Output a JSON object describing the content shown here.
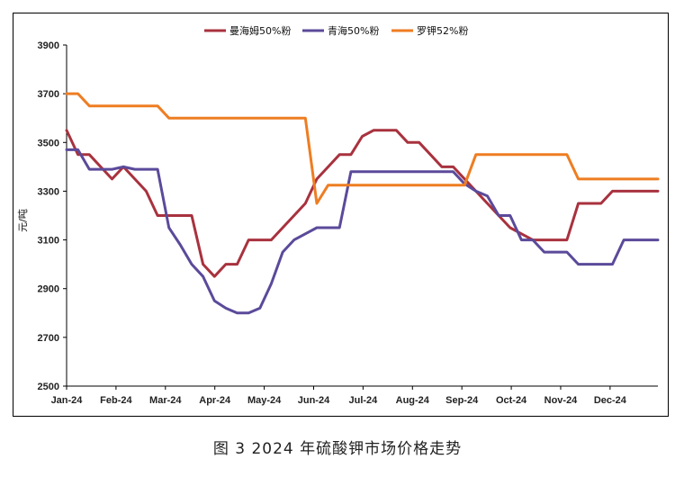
{
  "caption": "图 3  2024 年硫酸钾市场价格走势",
  "chart_data": {
    "type": "line",
    "title": "",
    "xlabel": "",
    "ylabel": "元/吨",
    "ylim": [
      2500,
      3900
    ],
    "yticks": [
      2500,
      2700,
      2900,
      3100,
      3300,
      3500,
      3700,
      3900
    ],
    "x_tick_labels": [
      "Jan-24",
      "Feb-24",
      "Mar-24",
      "Apr-24",
      "May-24",
      "Jun-24",
      "Jul-24",
      "Aug-24",
      "Sep-24",
      "Oct-24",
      "Nov-24",
      "Dec-24"
    ],
    "grid": false,
    "legend_position": "top",
    "x_unit": "week",
    "series": [
      {
        "name": "曼海姆50%粉",
        "color": "#A8323E",
        "values": [
          3550,
          3450,
          3450,
          3400,
          3350,
          3400,
          3350,
          3300,
          3200,
          3200,
          3200,
          3200,
          3000,
          2950,
          3000,
          3000,
          3100,
          3100,
          3100,
          3150,
          3200,
          3250,
          3350,
          3400,
          3450,
          3450,
          3525,
          3550,
          3550,
          3550,
          3500,
          3500,
          3450,
          3400,
          3400,
          3350,
          3300,
          3250,
          3200,
          3150,
          3125,
          3100,
          3100,
          3100,
          3100,
          3250,
          3250,
          3250,
          3300,
          3300,
          3300,
          3300,
          3300
        ]
      },
      {
        "name": "青海50%粉",
        "color": "#5B4A9A",
        "values": [
          3470,
          3470,
          3390,
          3390,
          3390,
          3400,
          3390,
          3390,
          3390,
          3150,
          3080,
          3000,
          2950,
          2850,
          2820,
          2800,
          2800,
          2820,
          2920,
          3050,
          3100,
          3125,
          3150,
          3150,
          3150,
          3380,
          3380,
          3380,
          3380,
          3380,
          3380,
          3380,
          3380,
          3380,
          3380,
          3330,
          3300,
          3280,
          3200,
          3200,
          3100,
          3100,
          3050,
          3050,
          3050,
          3000,
          3000,
          3000,
          3000,
          3100,
          3100,
          3100,
          3100
        ]
      },
      {
        "name": "罗钾52%粉",
        "color": "#EE7D22",
        "values": [
          3700,
          3700,
          3650,
          3650,
          3650,
          3650,
          3650,
          3650,
          3650,
          3600,
          3600,
          3600,
          3600,
          3600,
          3600,
          3600,
          3600,
          3600,
          3600,
          3600,
          3600,
          3600,
          3250,
          3325,
          3325,
          3325,
          3325,
          3325,
          3325,
          3325,
          3325,
          3325,
          3325,
          3325,
          3325,
          3325,
          3450,
          3450,
          3450,
          3450,
          3450,
          3450,
          3450,
          3450,
          3450,
          3350,
          3350,
          3350,
          3350,
          3350,
          3350,
          3350,
          3350
        ]
      }
    ]
  }
}
